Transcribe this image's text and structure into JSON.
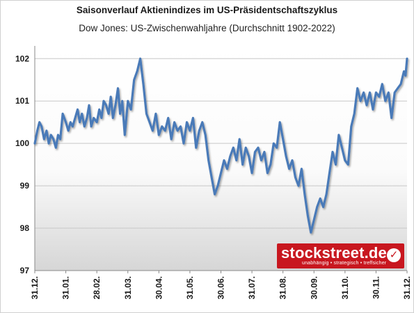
{
  "chart_data": {
    "type": "line",
    "title": "Saisonverlauf Aktienindizes im US-Präsidentschaftszyklus",
    "subtitle": "Dow Jones: US-Zwischenwahljahre (Durchschnitt 1902-2022)",
    "xlabel": "",
    "ylabel": "",
    "ylim": [
      97,
      102.3
    ],
    "yticks": [
      97,
      98,
      99,
      100,
      101,
      102
    ],
    "x_tick_labels": [
      "31.12.",
      "31.01.",
      "28.02.",
      "31.03.",
      "30.04.",
      "31.05.",
      "30.06.",
      "31.07.",
      "31.08.",
      "30.09.",
      "31.10.",
      "30.11.",
      "31.12."
    ],
    "grid": true,
    "legend": "none",
    "series": [
      {
        "color": "#4a7ab8",
        "x": [
          0,
          0.08,
          0.15,
          0.22,
          0.3,
          0.38,
          0.45,
          0.52,
          0.6,
          0.68,
          0.75,
          0.82,
          0.9,
          1.0,
          1.08,
          1.15,
          1.22,
          1.3,
          1.38,
          1.45,
          1.52,
          1.6,
          1.68,
          1.75,
          1.82,
          1.9,
          2.0,
          2.08,
          2.15,
          2.22,
          2.3,
          2.38,
          2.45,
          2.52,
          2.6,
          2.68,
          2.75,
          2.82,
          2.9,
          3.0,
          3.1,
          3.2,
          3.3,
          3.4,
          3.5,
          3.6,
          3.7,
          3.8,
          3.9,
          4.0,
          4.1,
          4.2,
          4.3,
          4.4,
          4.5,
          4.6,
          4.7,
          4.8,
          4.9,
          5.0,
          5.1,
          5.2,
          5.3,
          5.4,
          5.5,
          5.6,
          5.7,
          5.8,
          5.9,
          6.0,
          6.1,
          6.2,
          6.3,
          6.4,
          6.5,
          6.6,
          6.7,
          6.8,
          6.9,
          7.0,
          7.1,
          7.2,
          7.3,
          7.4,
          7.5,
          7.6,
          7.7,
          7.8,
          7.9,
          8.0,
          8.1,
          8.2,
          8.3,
          8.4,
          8.5,
          8.6,
          8.7,
          8.8,
          8.9,
          9.0,
          9.1,
          9.2,
          9.3,
          9.4,
          9.5,
          9.6,
          9.7,
          9.8,
          9.9,
          10.0,
          10.1,
          10.2,
          10.3,
          10.4,
          10.5,
          10.6,
          10.7,
          10.8,
          10.9,
          11.0,
          11.1,
          11.2,
          11.3,
          11.4,
          11.5,
          11.6,
          11.7,
          11.8,
          11.9,
          11.95,
          12.0
        ],
        "y": [
          100.0,
          100.3,
          100.5,
          100.4,
          100.1,
          100.3,
          100.0,
          100.2,
          100.1,
          99.9,
          100.2,
          100.1,
          100.7,
          100.5,
          100.3,
          100.5,
          100.4,
          100.6,
          100.8,
          100.5,
          100.7,
          100.4,
          100.6,
          100.9,
          100.4,
          100.6,
          100.5,
          100.8,
          100.6,
          101.0,
          100.9,
          100.7,
          101.1,
          100.6,
          100.9,
          101.3,
          100.7,
          101.0,
          100.2,
          101.0,
          100.8,
          101.5,
          101.7,
          102.0,
          101.4,
          100.7,
          100.5,
          100.3,
          100.7,
          100.2,
          100.4,
          100.3,
          100.6,
          100.1,
          100.5,
          100.3,
          100.4,
          100.0,
          100.5,
          100.3,
          100.6,
          99.9,
          100.3,
          100.5,
          100.2,
          99.6,
          99.2,
          98.8,
          99.0,
          99.3,
          99.6,
          99.4,
          99.7,
          99.9,
          99.6,
          100.1,
          99.5,
          99.9,
          99.7,
          99.3,
          99.8,
          99.9,
          99.6,
          99.8,
          99.3,
          99.5,
          100.0,
          99.9,
          100.5,
          100.1,
          99.7,
          99.4,
          99.6,
          99.2,
          99.0,
          99.4,
          98.8,
          98.3,
          97.9,
          98.2,
          98.5,
          98.7,
          98.5,
          98.8,
          99.3,
          99.8,
          99.5,
          100.2,
          99.9,
          99.6,
          99.5,
          100.4,
          100.7,
          101.3,
          101.0,
          101.2,
          100.9,
          101.2,
          100.8,
          101.2,
          101.1,
          101.4,
          101.0,
          101.2,
          100.6,
          101.2,
          101.3,
          101.4,
          101.7,
          101.6,
          102.0
        ]
      }
    ]
  },
  "logo": {
    "main": "stockstreet.de",
    "tagline": "unabhängig • strategisch • treffsicher",
    "check": "✓"
  }
}
